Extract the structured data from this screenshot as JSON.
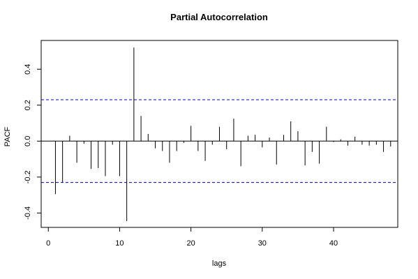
{
  "chart_data": {
    "type": "bar",
    "title": "Partial Autocorrelation",
    "xlabel": "lags",
    "ylabel": "PACF",
    "xlim": [
      -1,
      49
    ],
    "ylim": [
      -0.48,
      0.56
    ],
    "x_ticks": [
      0,
      10,
      20,
      30,
      40
    ],
    "y_ticks": [
      -0.4,
      -0.2,
      0.0,
      0.2,
      0.4
    ],
    "y_tick_labels": [
      "-0.4",
      "-0.2",
      "0.0",
      "0.2",
      "0.4"
    ],
    "confidence_band": [
      0.23,
      -0.23
    ],
    "bar_color": "#000000",
    "band_color": "#0000cc",
    "grid": false,
    "lags": [
      1,
      2,
      3,
      4,
      5,
      6,
      7,
      8,
      9,
      10,
      11,
      12,
      13,
      14,
      15,
      16,
      17,
      18,
      19,
      20,
      21,
      22,
      23,
      24,
      25,
      26,
      27,
      28,
      29,
      30,
      31,
      32,
      33,
      34,
      35,
      36,
      37,
      38,
      39,
      40,
      41,
      42,
      43,
      44,
      45,
      46,
      47,
      48
    ],
    "values": [
      -0.295,
      -0.23,
      0.03,
      -0.12,
      -0.015,
      -0.155,
      -0.15,
      -0.195,
      -0.02,
      -0.195,
      -0.445,
      0.52,
      0.14,
      0.04,
      -0.04,
      -0.055,
      -0.12,
      -0.055,
      -0.01,
      0.085,
      -0.055,
      -0.11,
      -0.02,
      0.08,
      -0.045,
      0.125,
      -0.14,
      0.03,
      0.035,
      -0.035,
      0.02,
      -0.13,
      0.035,
      0.11,
      0.055,
      -0.135,
      -0.06,
      -0.125,
      0.08,
      -0.005,
      0.01,
      -0.025,
      0.025,
      -0.02,
      -0.025,
      -0.02,
      -0.06,
      -0.03
    ]
  }
}
